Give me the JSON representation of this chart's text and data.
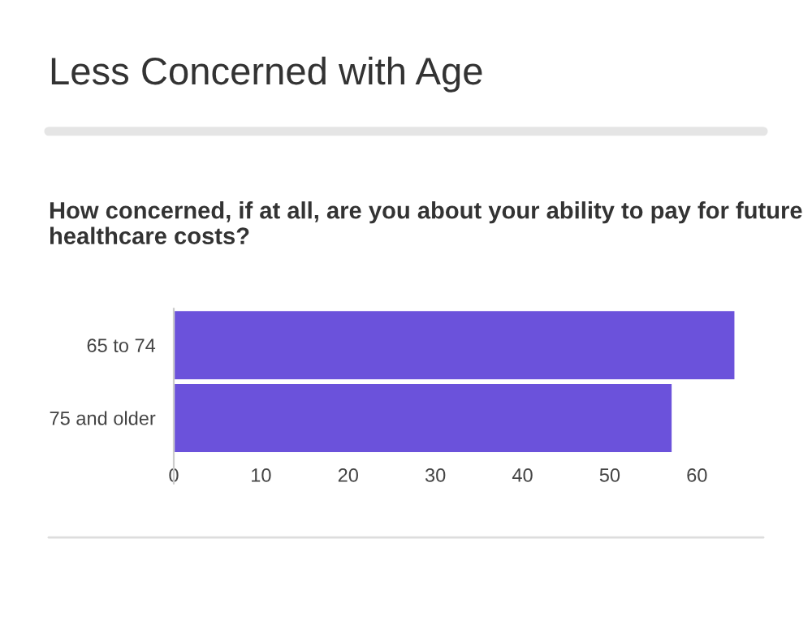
{
  "chart_data": {
    "type": "bar",
    "orientation": "horizontal",
    "title": "Less Concerned with Age",
    "subtitle": "How concerned, if at all, are you about your ability to pay for future healthcare costs?",
    "categories": [
      "65 to 74",
      "75 and older"
    ],
    "series": [
      {
        "color": "#6b52db",
        "values": [
          64.4,
          57.2
        ]
      }
    ],
    "xlim": [
      0,
      65
    ],
    "xticks": [
      0,
      10,
      20,
      30,
      40,
      50,
      60
    ],
    "grid": false,
    "legend": false
  }
}
